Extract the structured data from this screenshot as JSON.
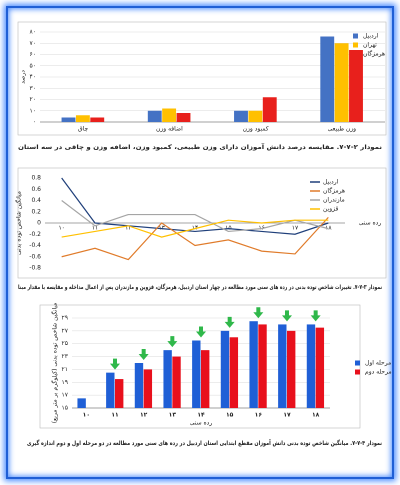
{
  "chart_data": [
    {
      "type": "bar",
      "caption": "نمودار ۲-۷-۷. مقایسه درصد دانش آموزان دارای وزن طبیعی، کمبود وزن، اضافه وزن و چاقی در سه استان",
      "y_label": "درصد",
      "categories": [
        "چاق",
        "اضافه وزن",
        "کمبود وزن",
        "وزن طبیعی"
      ],
      "series": [
        {
          "name": "اردبیل",
          "color": "#4472c4",
          "values": [
            4,
            10,
            10,
            76
          ]
        },
        {
          "name": "تهران",
          "color": "#ffc000",
          "values": [
            6,
            12,
            10,
            70
          ]
        },
        {
          "name": "هرمزگان",
          "color": "#e8201c",
          "values": [
            4,
            8,
            22,
            64
          ]
        }
      ],
      "ylim": [
        0,
        80
      ],
      "yticks": [
        {
          "value": 0,
          "label": "۰"
        },
        {
          "value": 10,
          "label": "۱۰"
        },
        {
          "value": 20,
          "label": "۲۰"
        },
        {
          "value": 30,
          "label": "۳۰"
        },
        {
          "value": 40,
          "label": "۴۰"
        },
        {
          "value": 50,
          "label": "۵۰"
        },
        {
          "value": 60,
          "label": "۶۰"
        },
        {
          "value": 70,
          "label": "۷۰"
        },
        {
          "value": 80,
          "label": "۸۰"
        }
      ],
      "grid": true,
      "legend": "upper right"
    },
    {
      "type": "line",
      "caption": "نمودار ۳-۷-۷. تغییرات شاخص توده بدنی در رده های سنی مورد مطالعه در چهار استان اردبیل، هرمزگان، قزوین و مازندران پس از اعمال مداخله و مقایسه با مقدار مبنا",
      "y_label": "میانگین شاخص توده بدنی",
      "x_label": "رده سنی",
      "categories": [
        "۱۰",
        "۱۱",
        "۱۲",
        "۱۳",
        "۱۴",
        "۱۵",
        "۱۶",
        "۱۷",
        "۱۸"
      ],
      "series": [
        {
          "name": "اردبیل",
          "color": "#1f3f7a",
          "values": [
            0.8,
            0,
            -0.05,
            -0.1,
            -0.15,
            -0.1,
            -0.15,
            -0.2,
            0
          ]
        },
        {
          "name": "هرمزگان",
          "color": "#e07b2a",
          "values": [
            -0.6,
            -0.45,
            -0.65,
            0,
            -0.4,
            -0.3,
            -0.5,
            -0.55,
            0.1
          ]
        },
        {
          "name": "مازندران",
          "color": "#a5a5a5",
          "values": [
            0.4,
            -0.05,
            0.15,
            0.15,
            0.15,
            -0.15,
            -0.1,
            0.05,
            -0.1
          ]
        },
        {
          "name": "قزوین",
          "color": "#ffc000",
          "values": [
            -0.25,
            -0.15,
            -0.05,
            -0.25,
            -0.1,
            0.05,
            0,
            0.05,
            0.05
          ]
        }
      ],
      "ylim": [
        -0.8,
        0.8
      ],
      "yticks": [
        -0.8,
        -0.6,
        -0.4,
        -0.2,
        0,
        0.2,
        0.4,
        0.6,
        0.8
      ],
      "grid": false,
      "legend": "upper right"
    },
    {
      "type": "bar",
      "caption": "نمودار ۴-۷-۷. میانگین شاخص توده بدنی دانش آموزان مقطع ابتدایی استان اردبیل در رده های سنی مورد مطالعه در دو مرحله اول و دوم اندازه گیری",
      "y_label": "میانگین شاخص توده بدنی (کیلوگرم بر متر مربع)",
      "x_label": "رده سنی",
      "categories": [
        "۱۰",
        "۱۱",
        "۱۲",
        "۱۳",
        "۱۴",
        "۱۵",
        "۱۶",
        "۱۷",
        "۱۸"
      ],
      "series": [
        {
          "name": "مرحله اول",
          "color": "#1f5fd6",
          "values": [
            16.5,
            20.5,
            22,
            24,
            25.5,
            27,
            28.5,
            28,
            28
          ]
        },
        {
          "name": "مرحله دوم",
          "color": "#e8101c",
          "values": [
            null,
            19.5,
            21,
            23,
            24,
            26,
            28,
            27,
            27.5
          ]
        }
      ],
      "ylim": [
        15,
        29
      ],
      "yticks": [
        {
          "value": 15,
          "label": "۱۵"
        },
        {
          "value": 17,
          "label": "۱۷"
        },
        {
          "value": 19,
          "label": "۱۹"
        },
        {
          "value": 21,
          "label": "۲۱"
        },
        {
          "value": 23,
          "label": "۲۳"
        },
        {
          "value": 25,
          "label": "۲۵"
        },
        {
          "value": 27,
          "label": "۲۷"
        },
        {
          "value": 29,
          "label": "۲۹"
        }
      ],
      "grid": true,
      "legend": "right"
    }
  ]
}
